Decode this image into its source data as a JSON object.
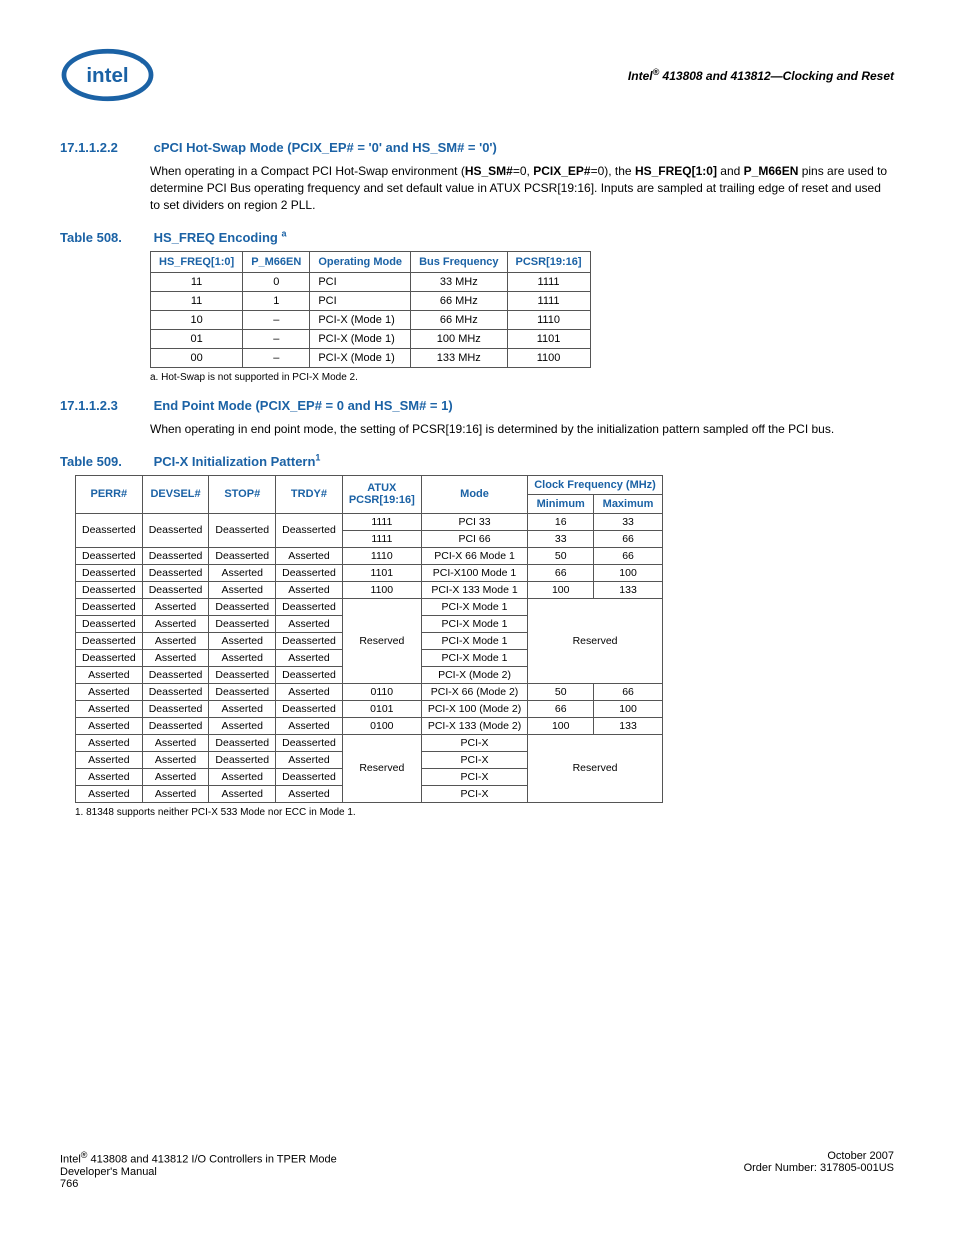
{
  "header": {
    "title_html": "Intel<sup>®</sup> 413808 and 413812—Clocking and Reset"
  },
  "sec1": {
    "num": "17.1.1.2.2",
    "title": "cPCI Hot-Swap Mode (PCIX_EP# = '0' and HS_SM# = '0')",
    "para_html": "When operating in a Compact PCI Hot-Swap environment (<b>HS_SM#</b>=0, <b>PCIX_EP#</b>=0), the <b>HS_FREQ[1:0]</b> and <b>P_M66EN</b> pins are used to determine PCI Bus operating frequency and set default value in ATUX PCSR[19:16]. Inputs are sampled at trailing edge of reset and used to set dividers on region 2 PLL."
  },
  "table508": {
    "num": "Table 508.",
    "title_html": "HS_FREQ Encoding <sup>a</sup>",
    "cols": [
      "HS_FREQ[1:0]",
      "P_M66EN",
      "Operating Mode",
      "Bus Frequency",
      "PCSR[19:16]"
    ],
    "rows": [
      [
        "11",
        "0",
        "PCI",
        "33 MHz",
        "1111"
      ],
      [
        "11",
        "1",
        "PCI",
        "66 MHz",
        "1111"
      ],
      [
        "10",
        "–",
        "PCI-X (Mode 1)",
        "66 MHz",
        "1110"
      ],
      [
        "01",
        "–",
        "PCI-X (Mode 1)",
        "100 MHz",
        "1101"
      ],
      [
        "00",
        "–",
        "PCI-X (Mode 1)",
        "133 MHz",
        "1100"
      ]
    ],
    "footnote": "a.  Hot-Swap is not supported in PCI-X Mode 2."
  },
  "sec2": {
    "num": "17.1.1.2.3",
    "title": "End Point Mode (PCIX_EP# = 0 and HS_SM# = 1)",
    "para": "When operating in end point mode, the setting of PCSR[19:16] is determined by the initialization pattern sampled off the PCI bus."
  },
  "table509": {
    "num": "Table 509.",
    "title_html": "PCI-X Initialization Pattern<sup>1</sup>",
    "head_row1": [
      "PERR#",
      "DEVSEL#",
      "STOP#",
      "TRDY#",
      "ATUX PCSR[19:16]",
      "Mode",
      "Clock Frequency (MHz)"
    ],
    "head_row2": [
      "Minimum",
      "Maximum"
    ],
    "footnote": "1.     81348 supports neither PCI-X 533 Mode nor ECC in Mode 1."
  },
  "footer": {
    "left1_html": "Intel<sup>®</sup> 413808 and 413812 I/O Controllers in TPER Mode",
    "left2": "Developer's Manual",
    "left3": "766",
    "right1": "October 2007",
    "right2": "Order Number: 317805-001US"
  }
}
